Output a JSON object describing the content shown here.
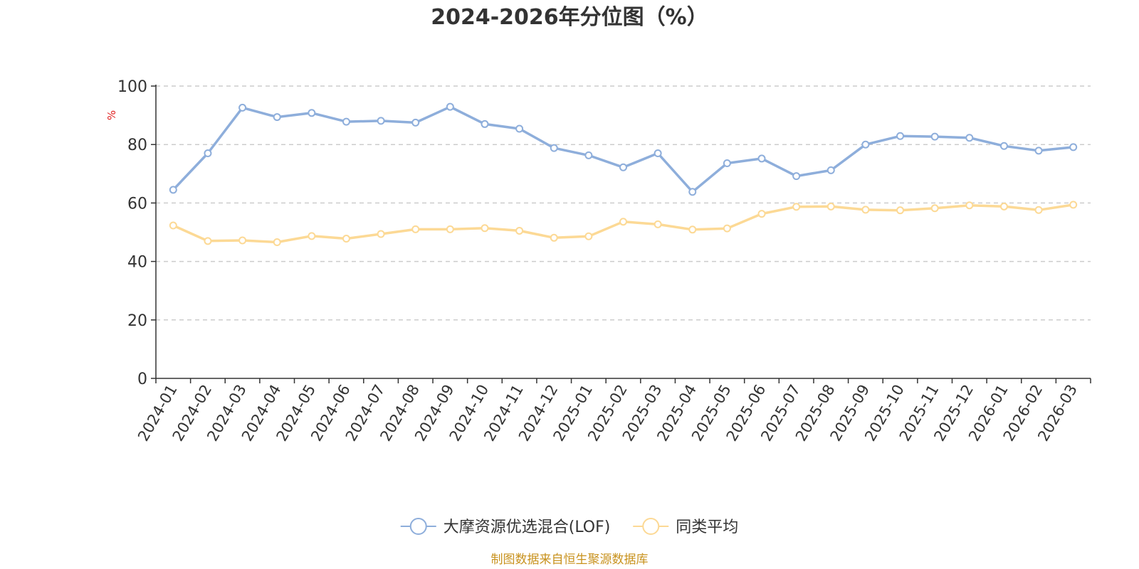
{
  "chart_data": {
    "type": "line",
    "title": "2024-2026年分位图（%）",
    "ylabel": "%",
    "ylim": [
      0,
      100
    ],
    "yticks": [
      0,
      20,
      40,
      60,
      80,
      100
    ],
    "grid": true,
    "legend_position": "bottom-center",
    "categories": [
      "2024-01",
      "2024-02",
      "2024-03",
      "2024-04",
      "2024-05",
      "2024-06",
      "2024-07",
      "2024-08",
      "2024-09",
      "2024-10",
      "2024-11",
      "2024-12",
      "2025-01",
      "2025-02",
      "2025-03",
      "2025-04",
      "2025-05",
      "2025-06",
      "2025-07",
      "2025-08",
      "2025-09",
      "2025-10",
      "2025-11",
      "2025-12",
      "2026-01",
      "2026-02",
      "2026-03"
    ],
    "series": [
      {
        "name": "大摩资源优选混合(LOF)",
        "color": "#8eaedb",
        "values": [
          64.5,
          77.0,
          92.6,
          89.4,
          90.8,
          87.8,
          88.1,
          87.5,
          92.9,
          87.0,
          85.4,
          78.8,
          76.3,
          72.2,
          77.0,
          63.8,
          73.6,
          75.2,
          69.2,
          71.2,
          80.0,
          82.9,
          82.7,
          82.3,
          79.5,
          77.9,
          79.1
        ]
      },
      {
        "name": "同类平均",
        "color": "#fcd995",
        "values": [
          52.3,
          47.0,
          47.2,
          46.6,
          48.7,
          47.8,
          49.4,
          51.0,
          51.0,
          51.4,
          50.5,
          48.1,
          48.6,
          53.6,
          52.7,
          50.9,
          51.3,
          56.3,
          58.7,
          58.8,
          57.7,
          57.5,
          58.2,
          59.2,
          58.8,
          57.6,
          59.4
        ]
      }
    ],
    "source": "制图数据来自恒生聚源数据库",
    "colors": {
      "axis": "#333333",
      "grid": "#cccccc",
      "ylabel": "#e02020",
      "source": "#c8921e"
    }
  }
}
